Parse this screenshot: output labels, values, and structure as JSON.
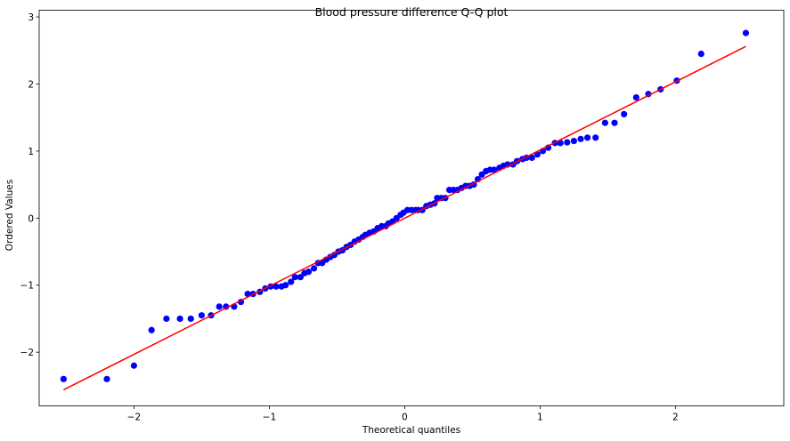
{
  "chart_data": {
    "type": "scatter",
    "title": "Blood pressure difference Q-Q plot",
    "xlabel": "Theoretical quantiles",
    "ylabel": "Ordered Values",
    "xlim": [
      -2.7,
      2.8
    ],
    "ylim": [
      -2.8,
      3.1
    ],
    "xticks": [
      -2,
      -1,
      0,
      1,
      2
    ],
    "yticks": [
      -2,
      -1,
      0,
      1,
      2,
      3
    ],
    "xtick_labels": [
      "−2",
      "−1",
      "0",
      "1",
      "2"
    ],
    "ytick_labels": [
      "−2",
      "−1",
      "0",
      "1",
      "2",
      "3"
    ],
    "grid": false,
    "colors": {
      "points": "#0000ff",
      "fit_line": "#ff0000"
    },
    "fit_line": {
      "x": [
        -2.52,
        2.52
      ],
      "y": [
        -2.56,
        2.56
      ]
    },
    "series": [
      {
        "x": [
          -2.52,
          -2.2,
          -2.0,
          -1.87,
          -1.76,
          -1.66,
          -1.58,
          -1.5,
          -1.43,
          -1.37,
          -1.32,
          -1.26,
          -1.21,
          -1.16,
          -1.12,
          -1.07,
          -1.03,
          -0.99,
          -0.95,
          -0.91,
          -0.88,
          -0.84,
          -0.81,
          -0.77,
          -0.74,
          -0.71,
          -0.67,
          -0.64,
          -0.61,
          -0.58,
          -0.55,
          -0.52,
          -0.49,
          -0.46,
          -0.43,
          -0.4,
          -0.37,
          -0.34,
          -0.31,
          -0.29,
          -0.26,
          -0.23,
          -0.2,
          -0.17,
          -0.14,
          -0.12,
          -0.09,
          -0.06,
          -0.03,
          -0.01,
          0.02,
          0.05,
          0.08,
          0.1,
          0.13,
          0.16,
          0.19,
          0.22,
          0.24,
          0.27,
          0.3,
          0.33,
          0.36,
          0.39,
          0.42,
          0.45,
          0.48,
          0.51,
          0.54,
          0.57,
          0.6,
          0.63,
          0.66,
          0.7,
          0.73,
          0.76,
          0.8,
          0.83,
          0.87,
          0.9,
          0.94,
          0.98,
          1.02,
          1.06,
          1.11,
          1.15,
          1.2,
          1.25,
          1.3,
          1.35,
          1.41,
          1.48,
          1.55,
          1.62,
          1.71,
          1.8,
          1.89,
          2.01,
          2.19,
          2.52
        ],
        "y": [
          -2.4,
          -2.4,
          -2.2,
          -1.67,
          -1.5,
          -1.5,
          -1.5,
          -1.45,
          -1.45,
          -1.32,
          -1.32,
          -1.32,
          -1.25,
          -1.13,
          -1.13,
          -1.1,
          -1.05,
          -1.02,
          -1.02,
          -1.02,
          -1.0,
          -0.95,
          -0.88,
          -0.88,
          -0.82,
          -0.8,
          -0.75,
          -0.67,
          -0.67,
          -0.62,
          -0.58,
          -0.55,
          -0.5,
          -0.48,
          -0.43,
          -0.4,
          -0.35,
          -0.32,
          -0.28,
          -0.25,
          -0.22,
          -0.2,
          -0.15,
          -0.12,
          -0.12,
          -0.08,
          -0.05,
          0.0,
          0.05,
          0.08,
          0.12,
          0.12,
          0.12,
          0.12,
          0.12,
          0.18,
          0.2,
          0.22,
          0.3,
          0.3,
          0.3,
          0.42,
          0.42,
          0.42,
          0.45,
          0.48,
          0.48,
          0.5,
          0.58,
          0.65,
          0.7,
          0.72,
          0.72,
          0.75,
          0.78,
          0.8,
          0.8,
          0.85,
          0.88,
          0.9,
          0.9,
          0.95,
          1.0,
          1.05,
          1.12,
          1.12,
          1.13,
          1.15,
          1.18,
          1.2,
          1.2,
          1.42,
          1.42,
          1.55,
          1.8,
          1.85,
          1.92,
          2.05,
          2.45,
          2.76
        ]
      }
    ]
  }
}
